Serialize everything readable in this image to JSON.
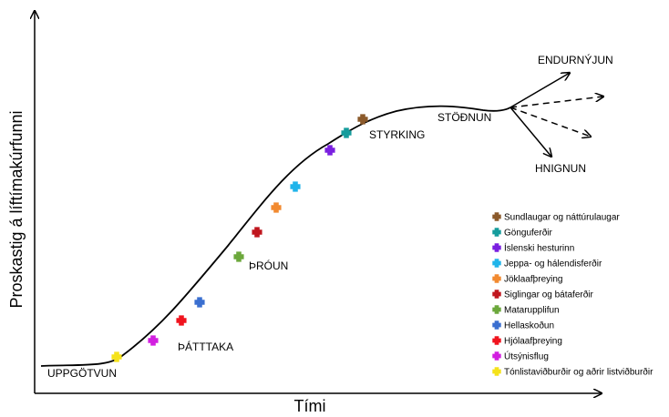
{
  "axes": {
    "x_label": "Tími",
    "y_label": "Proskastig á líftímakúrfunni"
  },
  "stages": {
    "discovery": "UPPGÖTVUN",
    "participation": "ÞÁTTTAKA",
    "development": "ÞRÓUN",
    "consolidation": "STYRKING",
    "stagnation": "STÖÐNUN",
    "rejuvenation": "ENDURNÝJUN",
    "decline": "HNIGNUN"
  },
  "legend": [
    {
      "label": "Sundlaugar og náttúrulaugar",
      "color": "#8B5A2B"
    },
    {
      "label": "Gönguferðir",
      "color": "#159C9C"
    },
    {
      "label": "Íslenski hesturinn",
      "color": "#7A1FE0"
    },
    {
      "label": "Jeppa- og hálendisferðir",
      "color": "#20B4EA"
    },
    {
      "label": "Jöklaafþreying",
      "color": "#F28A30"
    },
    {
      "label": "Siglingar og bátaferðir",
      "color": "#C0161E"
    },
    {
      "label": "Matarupplifun",
      "color": "#6CA83C"
    },
    {
      "label": "Hellaskoðun",
      "color": "#3A6FD0"
    },
    {
      "label": "Hjólaafþreying",
      "color": "#F0141E"
    },
    {
      "label": "Útsýnisflug",
      "color": "#D21FE0"
    },
    {
      "label": "Tónlistaviðburðir og aðrir listviðburðir",
      "color": "#F5E21A"
    }
  ]
}
